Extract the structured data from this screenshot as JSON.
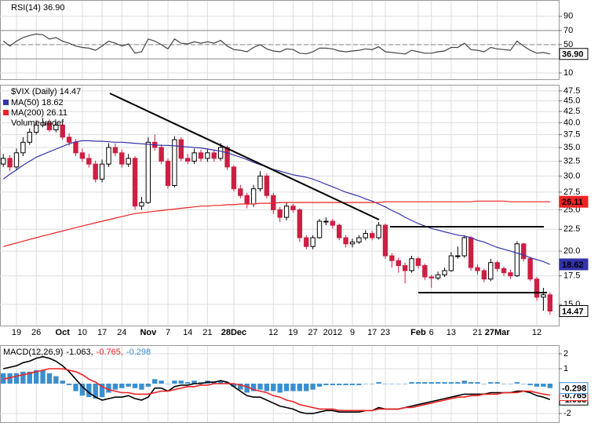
{
  "chart_data": [
    {
      "type": "line",
      "title": "RSI(14) 36.90",
      "last_label": "36.90",
      "ylim": [
        1.2,
        111.9
      ],
      "yticks": [
        90,
        70,
        50,
        10
      ],
      "reference_lines": [
        70,
        50,
        30
      ],
      "grid": true,
      "series": [
        {
          "name": "RSI(14)",
          "color": "#444444",
          "values": [
            55,
            48,
            55,
            60,
            63,
            65,
            64,
            58,
            60,
            55,
            52,
            48,
            46,
            45,
            42,
            48,
            55,
            52,
            48,
            51,
            38,
            40,
            58,
            55,
            50,
            44,
            58,
            52,
            51,
            54,
            52,
            54,
            52,
            56,
            48,
            43,
            42,
            40,
            46,
            50,
            44,
            41,
            40,
            44,
            43,
            38,
            37,
            40,
            45,
            45,
            44,
            41,
            40,
            41,
            42,
            44,
            43,
            47,
            40,
            39,
            38,
            37,
            42,
            40,
            38,
            38,
            40,
            41,
            46,
            46,
            52,
            43,
            42,
            40,
            46,
            44,
            43,
            42,
            55,
            48,
            42,
            38,
            39,
            36.9
          ]
        }
      ]
    },
    {
      "type": "candlestick",
      "title": "$VIX (Daily) 14.47",
      "volume_label": "Volume undef",
      "log_scale": true,
      "grid": true,
      "up_color": "#ffffff",
      "down_color": "#cc1f43",
      "color": "#000000",
      "ylim": [
        13.38,
        48.9
      ],
      "yticks": [
        47.5,
        {
          "value": 45,
          "label": "45.0"
        },
        42.5,
        {
          "value": 40,
          "label": "40.0"
        },
        37.5,
        {
          "value": 35,
          "label": "35.0"
        },
        32.5,
        {
          "value": 30,
          "label": "30.0"
        },
        27.5,
        {
          "value": 25,
          "label": "25.0"
        },
        22.5,
        {
          "value": 20,
          "label": "20.0"
        },
        17.5,
        {
          "value": 15,
          "label": "15.0"
        }
      ],
      "categories": [
        null,
        null,
        "19",
        null,
        null,
        "26",
        null,
        null,
        null,
        "Oct",
        null,
        null,
        "10",
        null,
        null,
        "17",
        null,
        null,
        "24",
        null,
        null,
        null,
        "Nov",
        null,
        null,
        "7",
        null,
        null,
        "14",
        null,
        null,
        "21",
        null,
        null,
        null,
        "28Dec",
        null,
        null,
        null,
        null,
        null,
        "12",
        null,
        null,
        "19",
        null,
        null,
        "27",
        null,
        null,
        "2012",
        null,
        null,
        "9",
        null,
        null,
        "17",
        null,
        "23",
        null,
        null,
        null,
        null,
        "Feb",
        null,
        "6",
        null,
        null,
        "13",
        null,
        null,
        null,
        "21",
        null,
        null,
        "27Mar",
        null,
        null,
        null,
        null,
        null,
        "12",
        null,
        null
      ],
      "open": [
        32,
        33,
        31.5,
        34,
        36,
        38,
        39.5,
        40,
        38.5,
        39.5,
        37,
        36,
        34,
        33,
        32,
        29.5,
        32,
        35,
        34,
        32,
        33,
        25.5,
        26,
        36,
        35,
        32.5,
        28.5,
        36.5,
        33,
        32.5,
        34,
        33,
        34,
        33,
        35,
        31.5,
        28,
        27,
        25.8,
        28,
        30,
        27,
        25,
        24,
        25.5,
        25,
        21.5,
        20.5,
        21.5,
        23.5,
        23.5,
        23,
        21.5,
        20.8,
        21,
        21.5,
        22,
        21.5,
        23,
        19.5,
        19,
        18.5,
        18,
        19.2,
        18.5,
        17.4,
        17.3,
        17.6,
        18,
        19.5,
        19.5,
        21.5,
        18.3,
        18,
        17.2,
        18.8,
        18.2,
        17.8,
        17.5,
        20.8,
        19.2,
        17.2,
        15.6,
        15.8
      ],
      "high": [
        33.8,
        33.6,
        34.8,
        37,
        38.8,
        40.5,
        41,
        40.8,
        40.2,
        40,
        37.8,
        36.6,
        34.8,
        33.8,
        32.6,
        32.8,
        35.8,
        35.8,
        34.6,
        33.8,
        33.4,
        26.8,
        37,
        37.5,
        35.6,
        33,
        37.2,
        37,
        33.8,
        34.8,
        34.6,
        34.8,
        34.6,
        35.8,
        35.4,
        31.8,
        28.6,
        27.4,
        28.6,
        30.8,
        30.4,
        27.4,
        25.4,
        26,
        25.8,
        25.2,
        21.8,
        21.8,
        23.8,
        24,
        23.8,
        23.2,
        21.8,
        21.4,
        21.8,
        22.4,
        22.3,
        23.4,
        23.2,
        19.8,
        19.3,
        18.8,
        19.5,
        19.4,
        18.7,
        17.6,
        17.9,
        18.3,
        19.9,
        20.5,
        21.8,
        21.7,
        18.6,
        18.2,
        19.2,
        19,
        18.4,
        18.1,
        21.1,
        20.9,
        19.4,
        17.4,
        16.4,
        16
      ],
      "low": [
        31.5,
        30.8,
        31,
        33.4,
        35.5,
        37.5,
        39,
        38,
        38,
        36.5,
        35.4,
        33.4,
        32.4,
        31.4,
        29,
        29,
        31.5,
        33.4,
        31.4,
        31.5,
        25,
        25,
        25.8,
        34.4,
        32,
        28,
        28.2,
        32.5,
        32,
        32,
        32.4,
        32.4,
        32.4,
        32.6,
        31,
        27.6,
        26.6,
        25.2,
        25.4,
        27.6,
        26.6,
        24.4,
        23.4,
        23.6,
        24.6,
        21,
        20.2,
        20.2,
        21.4,
        23,
        22.6,
        21.2,
        20.4,
        20.4,
        20.8,
        21.2,
        21.2,
        21.3,
        19.2,
        18.3,
        17.8,
        16.8,
        17.8,
        18.2,
        17.1,
        16.4,
        17.1,
        17.4,
        17.9,
        19.2,
        19.3,
        18,
        17.6,
        16.9,
        17,
        17.9,
        17.5,
        17.2,
        17.4,
        18.9,
        17,
        15.3,
        14.5,
        14.2
      ],
      "close": [
        33,
        31.5,
        34,
        36,
        38,
        39.5,
        40,
        38.5,
        39.5,
        37,
        36,
        34,
        33,
        32,
        29.5,
        32,
        35,
        34,
        32,
        33,
        25.5,
        26,
        36,
        35,
        32.5,
        28.5,
        36.5,
        33,
        32.5,
        34,
        33,
        34,
        33,
        35,
        31.5,
        28,
        27,
        25.8,
        28,
        30,
        27,
        25,
        24,
        25.5,
        25,
        21.5,
        20.5,
        21.5,
        23.5,
        23.5,
        23,
        21.5,
        20.8,
        21,
        21.5,
        22,
        21.5,
        23,
        19.5,
        19,
        18.5,
        18,
        19.2,
        18.5,
        17.4,
        17.3,
        17.6,
        18,
        19.5,
        19.5,
        21.5,
        18.3,
        18,
        17.2,
        18.8,
        18.2,
        17.8,
        17.5,
        20.8,
        19.2,
        17.2,
        15.6,
        15.8,
        14.47
      ],
      "series": [
        {
          "name": "MA(50) 18.62",
          "color": "#3333aa",
          "values": [
            29.5,
            30.3,
            31,
            31.8,
            32.5,
            33.2,
            33.7,
            34.2,
            34.7,
            35.2,
            35.7,
            36.1,
            36.3,
            36.3,
            36.2,
            36.2,
            36.1,
            36,
            36,
            35.9,
            35.8,
            35.7,
            35.6,
            35.5,
            35.4,
            35.4,
            35.3,
            35.2,
            35.1,
            35,
            34.9,
            34.7,
            34.5,
            34.3,
            34,
            33.6,
            33.2,
            32.8,
            32.3,
            31.9,
            31.5,
            31.1,
            30.8,
            30.5,
            30.2,
            30,
            29.8,
            29.5,
            29.1,
            28.7,
            28.3,
            27.9,
            27.5,
            27.2,
            26.9,
            26.5,
            26.2,
            25.8,
            25.4,
            24.9,
            24.5,
            24,
            23.6,
            23.2,
            22.9,
            22.6,
            22.4,
            22.2,
            22,
            21.8,
            21.7,
            21.5,
            21.2,
            21,
            20.7,
            20.4,
            20.2,
            20,
            19.8,
            19.6,
            19.3,
            19.1,
            18.9,
            18.62
          ]
        },
        {
          "name": "MA(200) 26.11",
          "color": "#ee2222",
          "values": [
            20.5,
            20.7,
            20.9,
            21.1,
            21.3,
            21.5,
            21.7,
            21.9,
            22.1,
            22.3,
            22.5,
            22.7,
            22.9,
            23.1,
            23.3,
            23.5,
            23.7,
            23.9,
            24.1,
            24.3,
            24.5,
            24.6,
            24.7,
            24.8,
            24.9,
            25,
            25.1,
            25.2,
            25.3,
            25.4,
            25.5,
            25.5,
            25.6,
            25.6,
            25.7,
            25.7,
            25.8,
            25.8,
            25.8,
            25.9,
            25.9,
            25.9,
            26,
            26,
            26,
            26,
            26,
            26,
            26,
            26,
            26,
            26,
            26,
            26,
            26,
            26,
            26,
            26,
            26.1,
            26.1,
            26.1,
            26.1,
            26.1,
            26.1,
            26.1,
            26.1,
            26.1,
            26.1,
            26.1,
            26.1,
            26.1,
            26.1,
            26.2,
            26.2,
            26.2,
            26.2,
            26.2,
            26.1,
            26.1,
            26.1,
            26.1,
            26.1,
            26.1,
            26.11
          ]
        }
      ]
    },
    {
      "type": "line",
      "title_parts": [
        "MACD(12,26,9)",
        "-1.063,",
        "-0.765,",
        "-0.298"
      ],
      "title_colors": [
        "#000000",
        "#000000",
        "#ee2222",
        "#3a8fd0"
      ],
      "ylim": [
        -2.57,
        2.52
      ],
      "yticks": [
        2,
        1,
        -2
      ],
      "grid": true,
      "series": [
        {
          "name": "MACD",
          "color": "#000000",
          "values": [
            1,
            1.1,
            1.2,
            1.4,
            1.5,
            1.7,
            1.8,
            1.7,
            1.5,
            1.2,
            0.8,
            0.3,
            -0.2,
            -0.6,
            -0.9,
            -1.1,
            -1,
            -0.9,
            -0.9,
            -0.8,
            -1,
            -1.1,
            -0.9,
            -0.3,
            -0.3,
            -0.5,
            -0.2,
            -0.1,
            -0.1,
            0,
            0,
            0.1,
            0.1,
            0.2,
            0.1,
            -0.2,
            -0.5,
            -0.8,
            -0.9,
            -0.9,
            -1.1,
            -1.3,
            -1.5,
            -1.6,
            -1.7,
            -1.9,
            -2,
            -2,
            -1.9,
            -1.8,
            -1.8,
            -1.9,
            -1.9,
            -1.9,
            -1.9,
            -1.8,
            -1.8,
            -1.6,
            -1.7,
            -1.7,
            -1.7,
            -1.6,
            -1.5,
            -1.4,
            -1.3,
            -1.2,
            -1.1,
            -1,
            -0.9,
            -0.8,
            -0.7,
            -0.7,
            -0.7,
            -0.7,
            -0.6,
            -0.6,
            -0.6,
            -0.6,
            -0.5,
            -0.5,
            -0.6,
            -0.8,
            -0.9,
            -1.063
          ]
        },
        {
          "name": "Signal",
          "color": "#ee2222",
          "values": [
            0.3,
            0.4,
            0.5,
            0.6,
            0.7,
            0.8,
            0.9,
            1,
            1,
            1,
            0.9,
            0.8,
            0.6,
            0.3,
            0.1,
            -0.2,
            -0.4,
            -0.5,
            -0.6,
            -0.6,
            -0.7,
            -0.7,
            -0.7,
            -0.6,
            -0.5,
            -0.5,
            -0.4,
            -0.3,
            -0.2,
            -0.2,
            -0.1,
            -0.1,
            0,
            0,
            0,
            0,
            -0.1,
            -0.2,
            -0.4,
            -0.5,
            -0.6,
            -0.8,
            -0.9,
            -1.1,
            -1.2,
            -1.4,
            -1.5,
            -1.6,
            -1.7,
            -1.7,
            -1.7,
            -1.8,
            -1.8,
            -1.8,
            -1.8,
            -1.8,
            -1.8,
            -1.7,
            -1.7,
            -1.7,
            -1.7,
            -1.6,
            -1.6,
            -1.5,
            -1.4,
            -1.3,
            -1.2,
            -1.1,
            -1,
            -0.9,
            -0.9,
            -0.8,
            -0.8,
            -0.7,
            -0.7,
            -0.7,
            -0.6,
            -0.6,
            -0.6,
            -0.5,
            -0.5,
            -0.6,
            -0.7,
            -0.765
          ]
        },
        {
          "name": "Histogram",
          "type": "bar",
          "color": "#3a8fd0",
          "values": [
            0.7,
            0.7,
            0.7,
            0.8,
            0.8,
            0.9,
            0.9,
            0.7,
            0.5,
            0.2,
            -0.1,
            -0.5,
            -0.8,
            -0.9,
            -1,
            -0.9,
            -0.6,
            -0.4,
            -0.3,
            -0.2,
            -0.3,
            -0.4,
            -0.2,
            0.3,
            0.2,
            0,
            0.2,
            0.2,
            0.1,
            0.2,
            0.1,
            0.2,
            0.1,
            0.2,
            0.1,
            -0.2,
            -0.4,
            -0.6,
            -0.5,
            -0.4,
            -0.5,
            -0.5,
            -0.6,
            -0.5,
            -0.5,
            -0.5,
            -0.5,
            -0.4,
            -0.2,
            -0.1,
            -0.1,
            -0.1,
            -0.1,
            -0.1,
            -0.1,
            0,
            0,
            0.1,
            0,
            0,
            0,
            0,
            0.1,
            0.1,
            0.1,
            0.1,
            0.1,
            0.1,
            0.1,
            0.1,
            0.2,
            0.1,
            0.1,
            0,
            0.1,
            0.1,
            0,
            0,
            0.1,
            0,
            -0.1,
            -0.2,
            -0.2,
            -0.298
          ]
        }
      ]
    }
  ]
}
